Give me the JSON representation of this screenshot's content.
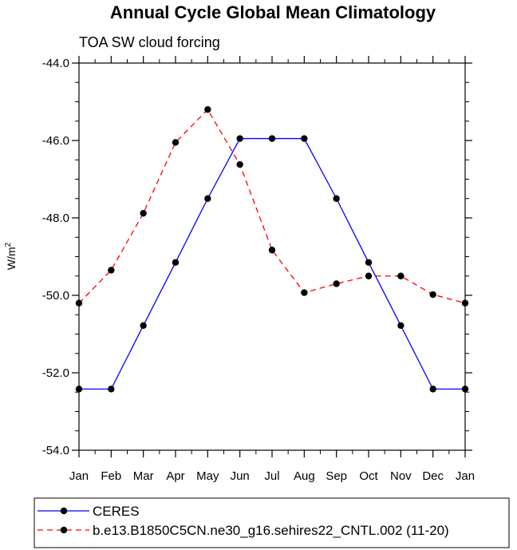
{
  "chart_data": {
    "type": "line",
    "title": "Annual Cycle Global Mean Climatology",
    "subtitle": "TOA SW cloud forcing",
    "ylabel": "W/m",
    "ylabel_superscript": "2",
    "xlabel": "",
    "ylim": [
      -54.0,
      -44.0
    ],
    "yticks": [
      -54.0,
      -52.0,
      -50.0,
      -48.0,
      -46.0,
      -44.0
    ],
    "ytick_labels": [
      "-54.0",
      "-52.0",
      "-50.0",
      "-48.0",
      "-46.0",
      "-44.0"
    ],
    "categories": [
      "Jan",
      "Feb",
      "Mar",
      "Apr",
      "May",
      "Jun",
      "Jul",
      "Aug",
      "Sep",
      "Oct",
      "Nov",
      "Dec",
      "Jan"
    ],
    "series": [
      {
        "name": "CERES",
        "color": "#0000ff",
        "dashed": false,
        "values": [
          -52.42,
          -52.42,
          -50.78,
          -49.15,
          -47.5,
          -45.95,
          -45.95,
          -45.95,
          -47.5,
          -49.15,
          -50.78,
          -52.42,
          -52.42
        ]
      },
      {
        "name": "b.e13.B1850C5CN.ne30_g16.sehires22_CNTL.002 (11-20)",
        "color": "#ff0000",
        "dashed": true,
        "values": [
          -50.2,
          -49.35,
          -47.88,
          -46.05,
          -45.2,
          -46.62,
          -48.83,
          -49.93,
          -49.7,
          -49.5,
          -49.5,
          -49.98,
          -50.2
        ]
      }
    ]
  }
}
